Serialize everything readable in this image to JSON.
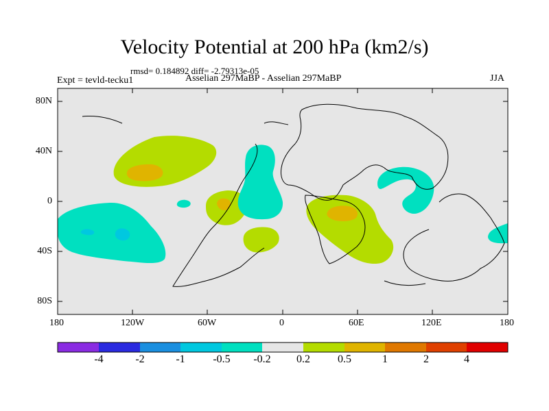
{
  "title": "Velocity Potential at 200 hPa (km2/s)",
  "stats": "rmsd= 0.184892 diff= -2.79313e-05",
  "left_label": "Expt = tevld-tecku1",
  "center_label": "Asselian 297MaBP - Asselian 297MaBP",
  "right_label": "JJA",
  "chart_data": {
    "type": "contour_map",
    "xlim": [
      -180,
      180
    ],
    "ylim": [
      -90,
      90
    ],
    "x_ticks": [
      "180",
      "120W",
      "60W",
      "0",
      "60E",
      "120E",
      "180"
    ],
    "y_ticks": [
      "80N",
      "40N",
      "0",
      "40S",
      "80S"
    ],
    "colorbar": {
      "labels": [
        "-4",
        "-2",
        "-1",
        "-0.5",
        "-0.2",
        "0.2",
        "0.5",
        "1",
        "2",
        "4"
      ],
      "colors": [
        "#8a2be2",
        "#2a2ae0",
        "#1a8fe0",
        "#00c8e0",
        "#00e0c0",
        "#e6e6e6",
        "#b4dc00",
        "#e0b400",
        "#e07800",
        "#e04000",
        "#e00000"
      ]
    },
    "features": [
      {
        "name": "positive anomaly over North Pacific",
        "value_range": "0.2 to 1",
        "center": [
          -110,
          28
        ]
      },
      {
        "name": "positive anomaly near equator west of 0",
        "value_range": "0.2 to 1",
        "center": [
          -48,
          -3
        ]
      },
      {
        "name": "positive anomaly in South Atlantic",
        "value_range": "0.2 to 0.5",
        "center": [
          -30,
          -32
        ]
      },
      {
        "name": "positive anomaly over southern Africa",
        "value_range": "0.2 to 1",
        "center": [
          50,
          -10
        ]
      },
      {
        "name": "negative anomaly over South Pacific",
        "value_range": "-1 to -0.2",
        "center": [
          -140,
          -25
        ]
      },
      {
        "name": "negative anomaly over Atlantic",
        "value_range": "-0.5 to -0.2",
        "center": [
          -15,
          15
        ]
      },
      {
        "name": "negative anomaly over Indian Ocean",
        "value_range": "-0.5 to -0.2",
        "center": [
          100,
          10
        ]
      },
      {
        "name": "negative anomaly near date line",
        "value_range": "-0.5 to -0.2",
        "center": [
          175,
          -25
        ]
      }
    ]
  }
}
